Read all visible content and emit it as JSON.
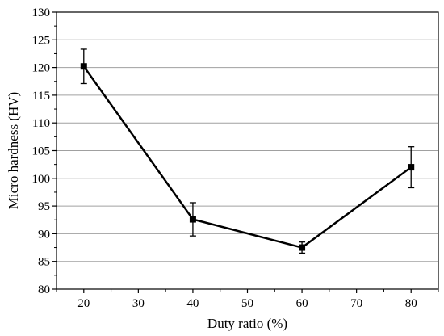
{
  "chart_data": {
    "type": "line",
    "title": "",
    "xlabel": "Duty ratio (%)",
    "ylabel": "Micro hardness (HV)",
    "xlim": [
      15,
      85
    ],
    "ylim": [
      80,
      130
    ],
    "x_ticks": [
      20,
      30,
      40,
      50,
      60,
      70,
      80
    ],
    "y_ticks": [
      80,
      85,
      90,
      95,
      100,
      105,
      110,
      115,
      120,
      125,
      130
    ],
    "grid": "horizontal",
    "legend": "none",
    "marker": "square",
    "line_color": "#000000",
    "grid_color": "#a0a0a0",
    "series": [
      {
        "x": [
          20,
          40,
          60,
          80
        ],
        "y": [
          120.2,
          92.6,
          87.5,
          102.0
        ],
        "error": [
          3.1,
          3.0,
          1.0,
          3.7
        ]
      }
    ]
  }
}
